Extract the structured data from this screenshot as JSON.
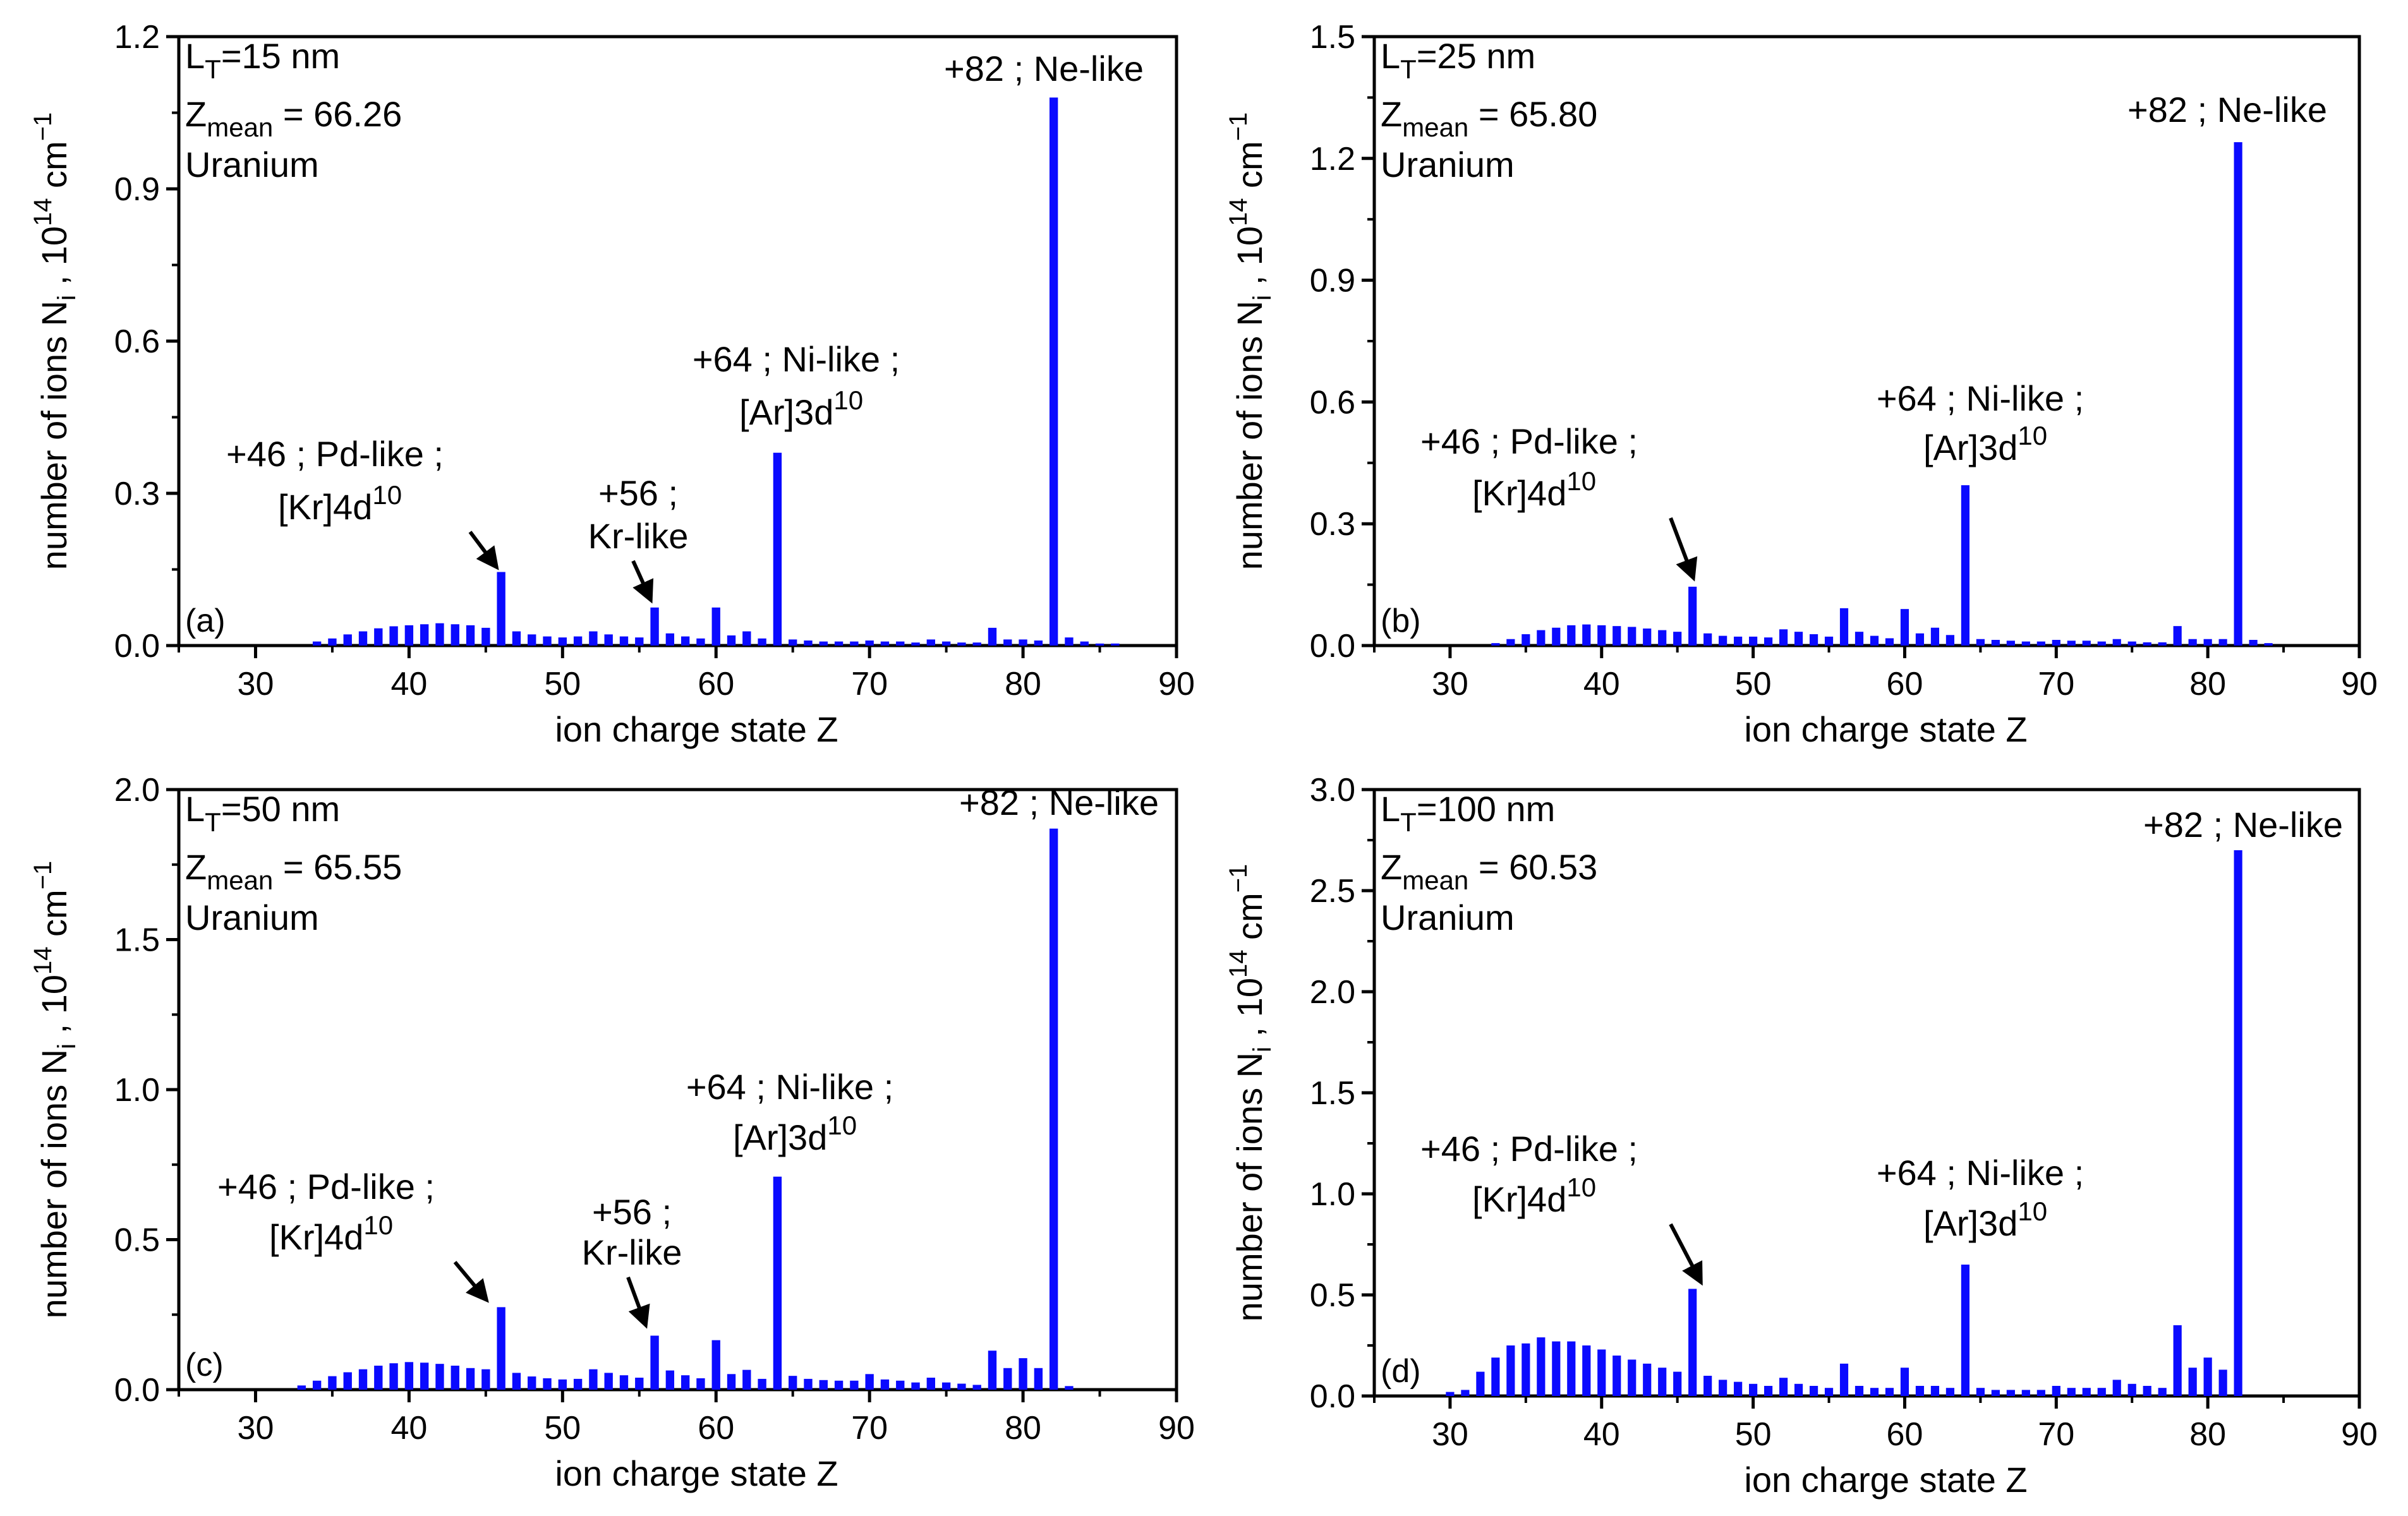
{
  "figure": {
    "description_label": "Uranium ion charge state distributions"
  },
  "colors": {
    "bar": "#0a0aff",
    "axis": "#000000",
    "text": "#000000"
  },
  "chart_data": [
    {
      "type": "bar",
      "panel_tag": "(a)",
      "lt_label": "L",
      "lt_sub": "T",
      "lt_value": "=15 nm",
      "zmean_label": "Z",
      "zmean_sub": "mean",
      "zmean_value": " = 66.26",
      "element": "Uranium",
      "xlabel": "ion charge state Z",
      "ylabel": {
        "main": "number of ions N",
        "sub": "i",
        "unit": " , 10",
        "exp": "14",
        "unit2": " cm",
        "unit_exp": "−1"
      },
      "xlim": [
        25,
        90
      ],
      "ylim": [
        0,
        1.2
      ],
      "xticks": [
        30,
        40,
        50,
        60,
        70,
        80,
        90
      ],
      "yticks": [
        0.0,
        0.3,
        0.6,
        0.9,
        1.2
      ],
      "ytick_labels": [
        "0.0",
        "0.3",
        "0.6",
        "0.9",
        "1.2"
      ],
      "x": [
        34,
        35,
        36,
        37,
        38,
        39,
        40,
        41,
        42,
        43,
        44,
        45,
        46,
        47,
        48,
        49,
        50,
        51,
        52,
        53,
        54,
        55,
        56,
        57,
        58,
        59,
        60,
        61,
        62,
        63,
        64,
        65,
        66,
        67,
        68,
        69,
        70,
        71,
        72,
        73,
        74,
        75,
        76,
        77,
        78,
        79,
        80,
        81,
        82,
        83,
        84,
        85,
        86
      ],
      "values": [
        0.008,
        0.014,
        0.022,
        0.028,
        0.034,
        0.038,
        0.04,
        0.042,
        0.044,
        0.042,
        0.04,
        0.035,
        0.145,
        0.028,
        0.022,
        0.018,
        0.016,
        0.018,
        0.028,
        0.022,
        0.018,
        0.016,
        0.075,
        0.024,
        0.018,
        0.014,
        0.075,
        0.02,
        0.028,
        0.014,
        0.38,
        0.012,
        0.01,
        0.008,
        0.008,
        0.008,
        0.01,
        0.008,
        0.008,
        0.006,
        0.012,
        0.008,
        0.006,
        0.006,
        0.035,
        0.012,
        0.012,
        0.01,
        1.08,
        0.016,
        0.008,
        0.004,
        0.004
      ],
      "annotations": [
        {
          "id": "pd",
          "line1": "+46 ; Pd-like ;",
          "line2_base": "[Kr]4d",
          "line2_sup": "10"
        },
        {
          "id": "kr",
          "line1": "+56 ;",
          "line2": "Kr-like"
        },
        {
          "id": "ni",
          "line1": "+64 ; Ni-like ;",
          "line2_base": "[Ar]3d",
          "line2_sup": "10"
        },
        {
          "id": "ne",
          "line1": "+82 ; Ne-like"
        }
      ]
    },
    {
      "type": "bar",
      "panel_tag": "(b)",
      "lt_label": "L",
      "lt_sub": "T",
      "lt_value": "=25 nm",
      "zmean_label": "Z",
      "zmean_sub": "mean",
      "zmean_value": " = 65.80",
      "element": "Uranium",
      "xlabel": "ion charge state Z",
      "ylabel": {
        "main": "number of ions N",
        "sub": "i",
        "unit": " , 10",
        "exp": "14",
        "unit2": " cm",
        "unit_exp": "−1"
      },
      "xlim": [
        25,
        90
      ],
      "ylim": [
        0,
        1.5
      ],
      "xticks": [
        30,
        40,
        50,
        60,
        70,
        80,
        90
      ],
      "yticks": [
        0.0,
        0.3,
        0.6,
        0.9,
        1.2,
        1.5
      ],
      "ytick_labels": [
        "0.0",
        "0.3",
        "0.6",
        "0.9",
        "1.2",
        "1.5"
      ],
      "x": [
        33,
        34,
        35,
        36,
        37,
        38,
        39,
        40,
        41,
        42,
        43,
        44,
        45,
        46,
        47,
        48,
        49,
        50,
        51,
        52,
        53,
        54,
        55,
        56,
        57,
        58,
        59,
        60,
        61,
        62,
        63,
        64,
        65,
        66,
        67,
        68,
        69,
        70,
        71,
        72,
        73,
        74,
        75,
        76,
        77,
        78,
        79,
        80,
        81,
        82,
        83,
        84
      ],
      "values": [
        0.006,
        0.016,
        0.028,
        0.038,
        0.044,
        0.05,
        0.052,
        0.05,
        0.048,
        0.046,
        0.042,
        0.038,
        0.034,
        0.145,
        0.03,
        0.024,
        0.022,
        0.022,
        0.02,
        0.04,
        0.034,
        0.028,
        0.022,
        0.092,
        0.034,
        0.024,
        0.018,
        0.09,
        0.03,
        0.044,
        0.026,
        0.395,
        0.016,
        0.014,
        0.012,
        0.01,
        0.01,
        0.014,
        0.012,
        0.012,
        0.01,
        0.016,
        0.01,
        0.008,
        0.008,
        0.048,
        0.016,
        0.016,
        0.016,
        1.24,
        0.014,
        0.006
      ],
      "annotations": [
        {
          "id": "pd",
          "line1": "+46 ; Pd-like ;",
          "line2_base": "[Kr]4d",
          "line2_sup": "10"
        },
        {
          "id": "ni",
          "line1": "+64 ; Ni-like ;",
          "line2_base": "[Ar]3d",
          "line2_sup": "10"
        },
        {
          "id": "ne",
          "line1": "+82 ; Ne-like"
        }
      ]
    },
    {
      "type": "bar",
      "panel_tag": "(c)",
      "lt_label": "L",
      "lt_sub": "T",
      "lt_value": "=50 nm",
      "zmean_label": "Z",
      "zmean_sub": "mean",
      "zmean_value": " = 65.55",
      "element": "Uranium",
      "xlabel": "ion charge state Z",
      "ylabel": {
        "main": "number of ions N",
        "sub": "i",
        "unit": " , 10",
        "exp": "14",
        "unit2": " cm",
        "unit_exp": "−1"
      },
      "xlim": [
        25,
        90
      ],
      "ylim": [
        0,
        2.0
      ],
      "xticks": [
        30,
        40,
        50,
        60,
        70,
        80,
        90
      ],
      "yticks": [
        0.0,
        0.5,
        1.0,
        1.5,
        2.0
      ],
      "ytick_labels": [
        "0.0",
        "0.5",
        "1.0",
        "1.5",
        "2.0"
      ],
      "x": [
        33,
        34,
        35,
        36,
        37,
        38,
        39,
        40,
        41,
        42,
        43,
        44,
        45,
        46,
        47,
        48,
        49,
        50,
        51,
        52,
        53,
        54,
        55,
        56,
        57,
        58,
        59,
        60,
        61,
        62,
        63,
        64,
        65,
        66,
        67,
        68,
        69,
        70,
        71,
        72,
        73,
        74,
        75,
        76,
        77,
        78,
        79,
        80,
        81,
        82,
        83
      ],
      "values": [
        0.014,
        0.03,
        0.045,
        0.058,
        0.068,
        0.08,
        0.088,
        0.092,
        0.09,
        0.086,
        0.08,
        0.072,
        0.068,
        0.275,
        0.056,
        0.044,
        0.038,
        0.034,
        0.036,
        0.068,
        0.056,
        0.048,
        0.04,
        0.18,
        0.064,
        0.048,
        0.038,
        0.165,
        0.052,
        0.066,
        0.036,
        0.71,
        0.046,
        0.036,
        0.032,
        0.03,
        0.03,
        0.052,
        0.034,
        0.03,
        0.024,
        0.04,
        0.024,
        0.02,
        0.016,
        0.13,
        0.072,
        0.105,
        0.072,
        1.87,
        0.012
      ],
      "annotations": [
        {
          "id": "pd",
          "line1": "+46 ; Pd-like ;",
          "line2_base": "[Kr]4d",
          "line2_sup": "10"
        },
        {
          "id": "kr",
          "line1": "+56 ;",
          "line2": "Kr-like"
        },
        {
          "id": "ni",
          "line1": "+64 ; Ni-like ;",
          "line2_base": "[Ar]3d",
          "line2_sup": "10"
        },
        {
          "id": "ne",
          "line1": "+82 ; Ne-like"
        }
      ]
    },
    {
      "type": "bar",
      "panel_tag": "(d)",
      "lt_label": "L",
      "lt_sub": "T",
      "lt_value": "=100 nm",
      "zmean_label": "Z",
      "zmean_sub": "mean",
      "zmean_value": " = 60.53",
      "element": "Uranium",
      "xlabel": "ion charge state Z",
      "ylabel": {
        "main": "number of ions N",
        "sub": "i",
        "unit": " , 10",
        "exp": "14",
        "unit2": " cm",
        "unit_exp": "−1"
      },
      "xlim": [
        25,
        90
      ],
      "ylim": [
        0,
        3.0
      ],
      "xticks": [
        30,
        40,
        50,
        60,
        70,
        80,
        90
      ],
      "yticks": [
        0.0,
        0.5,
        1.0,
        1.5,
        2.0,
        2.5,
        3.0
      ],
      "ytick_labels": [
        "0.0",
        "0.5",
        "1.0",
        "1.5",
        "2.0",
        "2.5",
        "3.0"
      ],
      "x": [
        30,
        31,
        32,
        33,
        34,
        35,
        36,
        37,
        38,
        39,
        40,
        41,
        42,
        43,
        44,
        45,
        46,
        47,
        48,
        49,
        50,
        51,
        52,
        53,
        54,
        55,
        56,
        57,
        58,
        59,
        60,
        61,
        62,
        63,
        64,
        65,
        66,
        67,
        68,
        69,
        70,
        71,
        72,
        73,
        74,
        75,
        76,
        77,
        78,
        79,
        80,
        81,
        82
      ],
      "values": [
        0.02,
        0.03,
        0.12,
        0.19,
        0.25,
        0.26,
        0.29,
        0.27,
        0.27,
        0.25,
        0.23,
        0.2,
        0.18,
        0.16,
        0.14,
        0.12,
        0.53,
        0.1,
        0.08,
        0.07,
        0.06,
        0.05,
        0.09,
        0.06,
        0.05,
        0.04,
        0.16,
        0.05,
        0.04,
        0.04,
        0.14,
        0.05,
        0.05,
        0.04,
        0.65,
        0.04,
        0.03,
        0.03,
        0.03,
        0.03,
        0.05,
        0.04,
        0.04,
        0.04,
        0.08,
        0.06,
        0.05,
        0.04,
        0.35,
        0.14,
        0.19,
        0.13,
        2.7
      ],
      "annotations": [
        {
          "id": "pd",
          "line1": "+46 ; Pd-like ;",
          "line2_base": "[Kr]4d",
          "line2_sup": "10"
        },
        {
          "id": "ni",
          "line1": "+64 ; Ni-like ;",
          "line2_base": "[Ar]3d",
          "line2_sup": "10"
        },
        {
          "id": "ne",
          "line1": "+82 ; Ne-like"
        }
      ]
    }
  ]
}
